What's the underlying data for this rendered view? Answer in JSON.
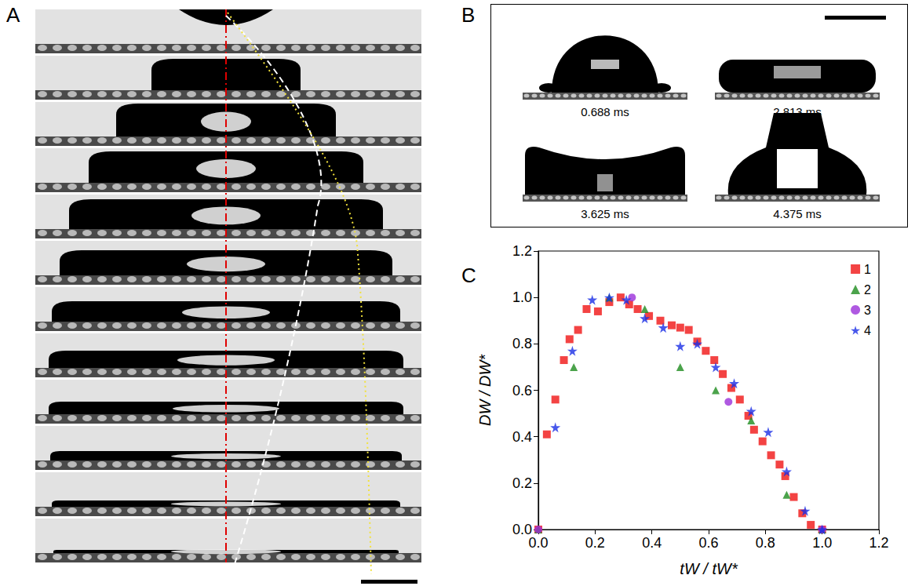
{
  "panels": {
    "A": {
      "letter": "A"
    },
    "B": {
      "letter": "B",
      "frames": [
        "0.688 ms",
        "2.813 ms",
        "3.625 ms",
        "4.375 ms"
      ]
    },
    "C": {
      "letter": "C"
    }
  },
  "chart_data": {
    "type": "scatter",
    "x_label": "tW / tW*",
    "y_label": "DW / DW*",
    "xlim": [
      0,
      1.2
    ],
    "ylim": [
      0,
      1.2
    ],
    "xticks": [
      {
        "value": 0,
        "label": "0.0"
      },
      0.2,
      0.4,
      0.6,
      0.8,
      {
        "value": 1,
        "label": "1.0"
      },
      1.2
    ],
    "yticks": [
      {
        "value": 0,
        "label": "0.0"
      },
      0.2,
      0.4,
      0.6,
      0.8,
      {
        "value": 1,
        "label": "1.0"
      },
      1.2
    ],
    "grid": false,
    "legend": "upper right",
    "series": [
      {
        "name": "1",
        "color": "#f01414",
        "marker": "square",
        "x": [
          0,
          0.03,
          0.06,
          0.09,
          0.11,
          0.14,
          0.17,
          0.21,
          0.25,
          0.29,
          0.32,
          0.35,
          0.39,
          0.43,
          0.47,
          0.5,
          0.53,
          0.56,
          0.59,
          0.62,
          0.65,
          0.68,
          0.71,
          0.74,
          0.76,
          0.79,
          0.82,
          0.85,
          0.87,
          0.9,
          0.93,
          0.96,
          1.0
        ],
        "values": [
          0,
          0.41,
          0.56,
          0.73,
          0.82,
          0.86,
          0.95,
          0.94,
          0.98,
          1.0,
          0.97,
          0.95,
          0.92,
          0.9,
          0.88,
          0.87,
          0.86,
          0.81,
          0.77,
          0.73,
          0.67,
          0.61,
          0.56,
          0.49,
          0.43,
          0.38,
          0.32,
          0.28,
          0.23,
          0.14,
          0.07,
          0.02,
          0
        ]
      },
      {
        "name": "2",
        "color": "#1e8c1e",
        "marker": "triangle",
        "x": [
          0,
          0.125,
          0.25,
          0.375,
          0.5,
          0.625,
          0.75,
          0.875,
          1.0
        ],
        "values": [
          0,
          0.7,
          1.0,
          0.95,
          0.7,
          0.6,
          0.47,
          0.15,
          0
        ]
      },
      {
        "name": "3",
        "color": "#9b30d9",
        "marker": "circle",
        "x": [
          0,
          0.33,
          0.67,
          1.0
        ],
        "values": [
          0,
          1.0,
          0.55,
          0
        ]
      },
      {
        "name": "4",
        "color": "#1a2ee6",
        "marker": "star",
        "x": [
          0.06,
          0.12,
          0.19,
          0.25,
          0.31,
          0.375,
          0.44,
          0.5,
          0.56,
          0.625,
          0.69,
          0.75,
          0.81,
          0.875,
          0.94,
          1.0
        ],
        "values": [
          0.44,
          0.77,
          0.99,
          1.0,
          0.99,
          0.91,
          0.87,
          0.79,
          0.8,
          0.7,
          0.63,
          0.51,
          0.42,
          0.25,
          0.08,
          0
        ]
      }
    ]
  }
}
